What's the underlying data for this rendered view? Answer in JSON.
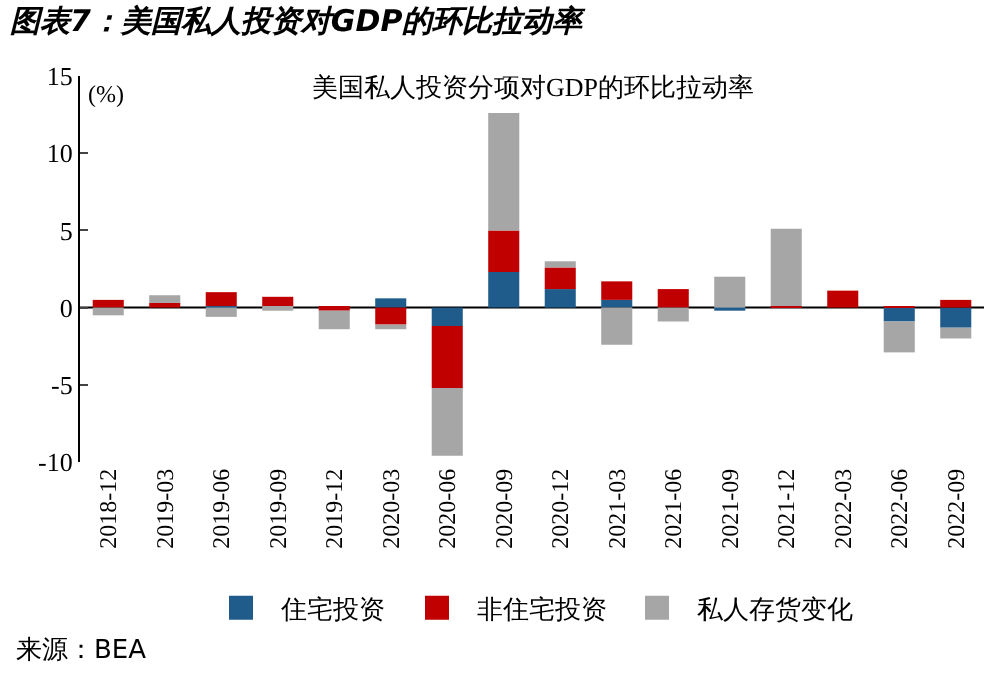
{
  "chart_data": {
    "type": "bar",
    "stacked": true,
    "title": "图表7：美国私人投资对GDP的环比拉动率",
    "subtitle": "美国私人投资分项对GDP的环比拉动率",
    "ylabel": "(%)",
    "categories": [
      "2018-12",
      "2019-03",
      "2019-06",
      "2019-09",
      "2019-12",
      "2020-03",
      "2020-06",
      "2020-09",
      "2020-12",
      "2021-03",
      "2021-06",
      "2021-09",
      "2021-12",
      "2022-03",
      "2022-06",
      "2022-09"
    ],
    "series": [
      {
        "name": "住宅投资",
        "color": "#1f5c8b",
        "values": [
          null,
          0,
          0.1,
          0,
          null,
          0.6,
          -1.2,
          2.3,
          1.2,
          0.5,
          null,
          -0.2,
          0,
          null,
          -0.9,
          -1.3
        ]
      },
      {
        "name": "非住宅投资",
        "color": "#c00000",
        "values": [
          0.5,
          0.3,
          0.9,
          0.7,
          -0.2,
          -1.1,
          -4.0,
          2.7,
          1.4,
          1.2,
          1.2,
          0,
          0.1,
          1.1,
          0.1,
          0.5
        ]
      },
      {
        "name": "私人存货变化",
        "color": "#a6a6a6",
        "values": [
          -0.5,
          0.5,
          -0.6,
          -0.2,
          -1.2,
          -0.3,
          -4.4,
          7.6,
          0.4,
          -2.4,
          -0.9,
          2.0,
          5.0,
          0,
          -2.0,
          -0.7
        ]
      }
    ],
    "ref_lines": [
      {
        "axis": "y",
        "value": 0,
        "color": "#000000",
        "line_style": "solid"
      }
    ],
    "ylim": [
      -10,
      15
    ],
    "yticks": [
      -10,
      -5,
      0,
      5,
      10,
      15
    ],
    "grid": false,
    "legend": "bottom",
    "annotations": [
      "来源：BEA"
    ]
  }
}
